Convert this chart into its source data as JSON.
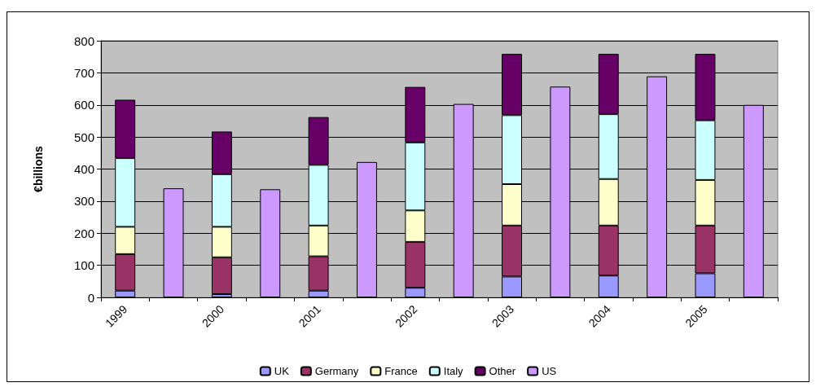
{
  "chart_data": {
    "type": "bar",
    "stacked": true,
    "ylabel": "€billions",
    "categories": [
      "1999",
      null,
      "2000",
      null,
      "2001",
      null,
      "2002",
      null,
      "2003",
      null,
      "2004",
      null,
      "2005",
      null
    ],
    "series": [
      {
        "name": "UK",
        "color": "#9999ff",
        "values": [
          21,
          null,
          10,
          null,
          21,
          null,
          30,
          null,
          65,
          null,
          68,
          null,
          75,
          null
        ]
      },
      {
        "name": "Germany",
        "color": "#993366",
        "values": [
          114,
          null,
          115,
          null,
          107,
          null,
          143,
          null,
          159,
          null,
          156,
          null,
          149,
          null
        ]
      },
      {
        "name": "France",
        "color": "#ffffcc",
        "values": [
          85,
          null,
          95,
          null,
          96,
          null,
          98,
          null,
          129,
          null,
          145,
          null,
          142,
          null
        ]
      },
      {
        "name": "Italy",
        "color": "#ccffff",
        "values": [
          214,
          null,
          164,
          null,
          189,
          null,
          212,
          null,
          215,
          null,
          202,
          null,
          186,
          null
        ]
      },
      {
        "name": "Other",
        "color": "#660066",
        "values": [
          182,
          null,
          133,
          null,
          149,
          null,
          173,
          null,
          191,
          null,
          188,
          null,
          207,
          null
        ]
      },
      {
        "name": "US",
        "color": "#cc99ff",
        "values": [
          null,
          340,
          null,
          337,
          null,
          422,
          null,
          603,
          null,
          657,
          null,
          689,
          null,
          600
        ]
      }
    ],
    "ylim": [
      0,
      800
    ],
    "yticks": [
      0,
      100,
      200,
      300,
      400,
      500,
      600,
      700,
      800
    ],
    "grid": "y",
    "legend": "bottom"
  }
}
